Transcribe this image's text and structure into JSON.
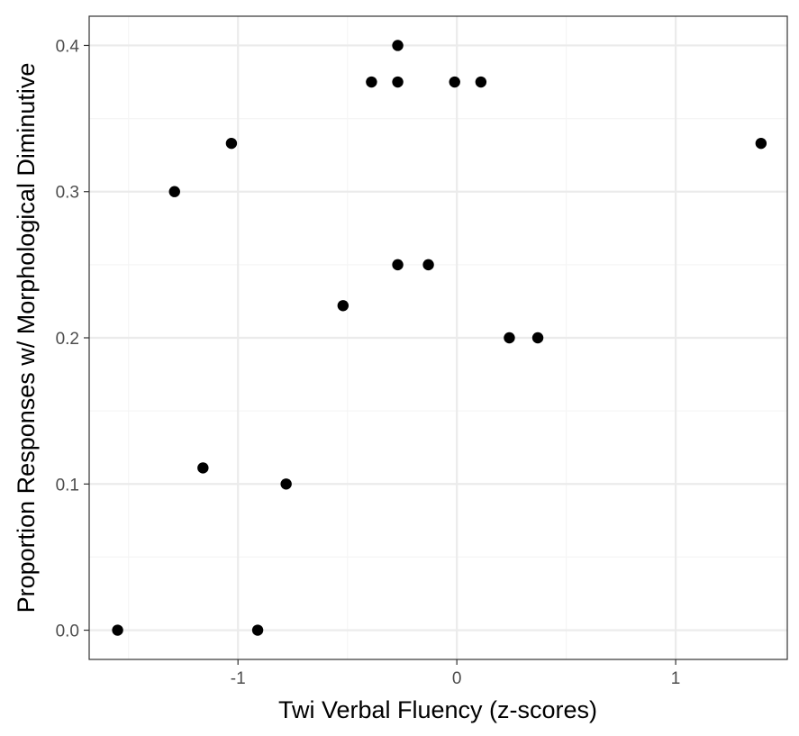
{
  "chart_data": {
    "type": "scatter",
    "title": "",
    "xlabel": "Twi Verbal Fluency (z-scores)",
    "ylabel": "Proportion Responses w/ Morphological Diminutive",
    "xlim": [
      -1.68,
      1.51
    ],
    "ylim": [
      -0.02,
      0.42
    ],
    "x_ticks": [
      -1,
      0,
      1
    ],
    "x_tick_labels": [
      "-1",
      "0",
      "1"
    ],
    "x_minor_ticks": [
      -1.5,
      -0.5,
      0.5,
      1.5
    ],
    "y_ticks": [
      0.0,
      0.1,
      0.2,
      0.3,
      0.4
    ],
    "y_tick_labels": [
      "0.0",
      "0.1",
      "0.2",
      "0.3",
      "0.4"
    ],
    "y_minor_ticks": [
      0.05,
      0.15,
      0.25,
      0.35
    ],
    "grid": true,
    "legend": "none",
    "colors": {
      "point": "#000000",
      "grid_major": "#ebebeb",
      "grid_minor": "#f5f5f5",
      "panel_border": "#333333",
      "tick_label": "#4d4d4d"
    },
    "points": [
      {
        "x": -1.55,
        "y": 0.0
      },
      {
        "x": -0.91,
        "y": 0.0
      },
      {
        "x": -1.16,
        "y": 0.111
      },
      {
        "x": -0.78,
        "y": 0.1
      },
      {
        "x": -1.29,
        "y": 0.3
      },
      {
        "x": -1.03,
        "y": 0.333
      },
      {
        "x": -0.52,
        "y": 0.222
      },
      {
        "x": -0.27,
        "y": 0.25
      },
      {
        "x": -0.13,
        "y": 0.25
      },
      {
        "x": 0.24,
        "y": 0.2
      },
      {
        "x": 0.37,
        "y": 0.2
      },
      {
        "x": -0.39,
        "y": 0.375
      },
      {
        "x": -0.27,
        "y": 0.375
      },
      {
        "x": -0.01,
        "y": 0.375
      },
      {
        "x": 0.11,
        "y": 0.375
      },
      {
        "x": -0.27,
        "y": 0.4
      },
      {
        "x": 1.39,
        "y": 0.333
      }
    ]
  }
}
